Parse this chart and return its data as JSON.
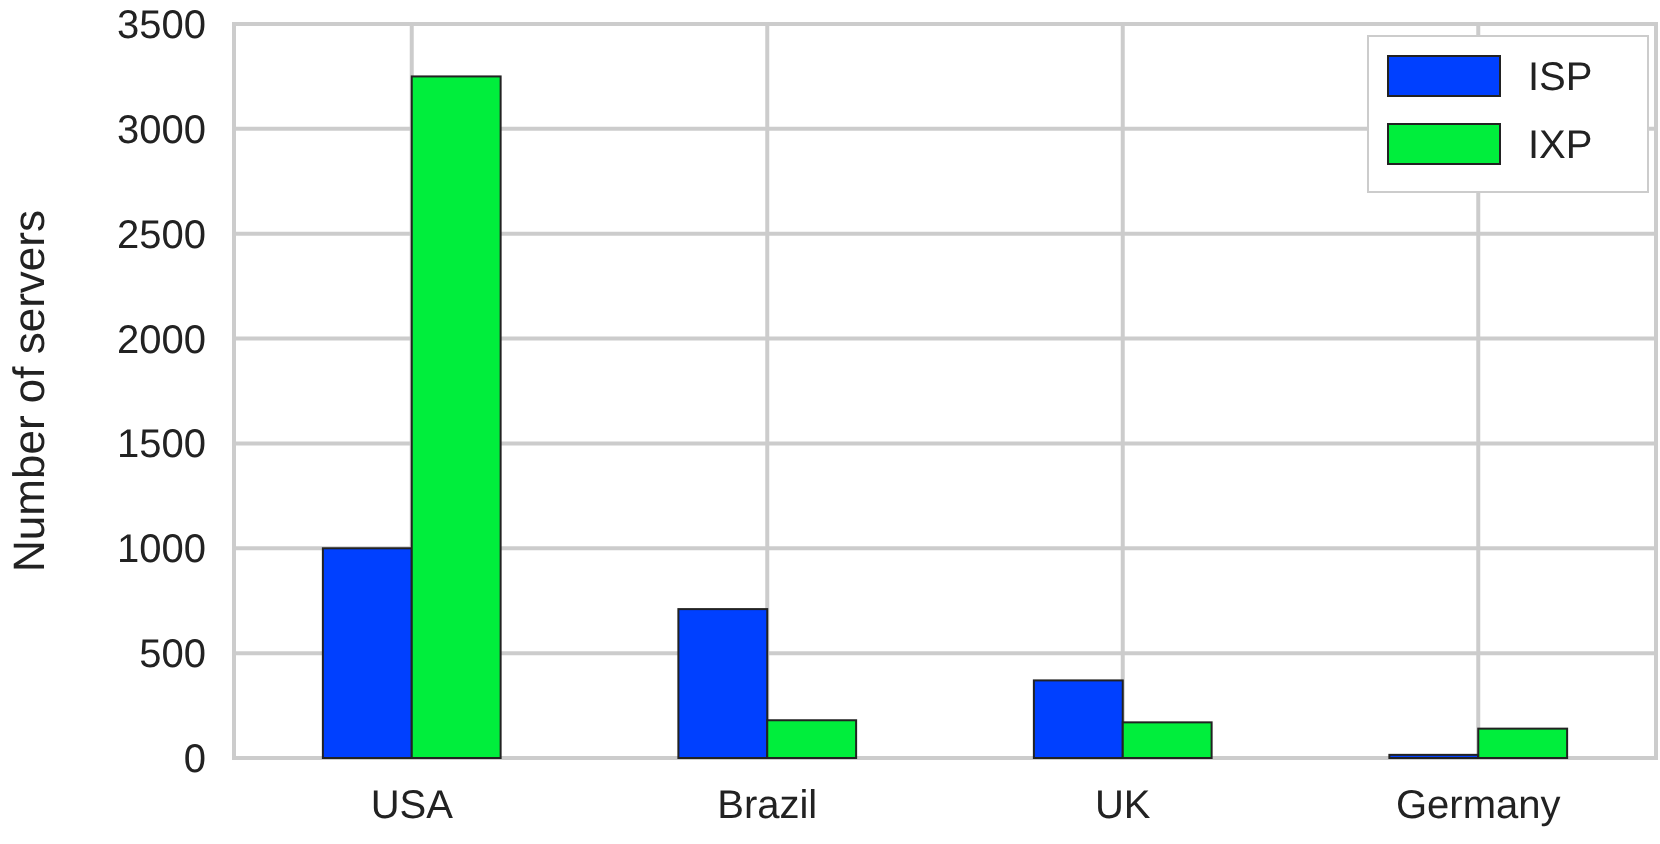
{
  "chart_data": {
    "type": "bar",
    "ylabel": "Number of servers",
    "categories": [
      "USA",
      "Brazil",
      "UK",
      "Germany"
    ],
    "series": [
      {
        "name": "ISP",
        "color": "#0040ff",
        "values": [
          1000,
          710,
          370,
          15
        ]
      },
      {
        "name": "IXP",
        "color": "#00ee3c",
        "values": [
          3250,
          180,
          170,
          140
        ]
      }
    ],
    "ylim": [
      0,
      3500
    ],
    "yticks": [
      0,
      500,
      1000,
      1500,
      2000,
      2500,
      3000,
      3500
    ],
    "grid": true,
    "legend": "top right"
  }
}
